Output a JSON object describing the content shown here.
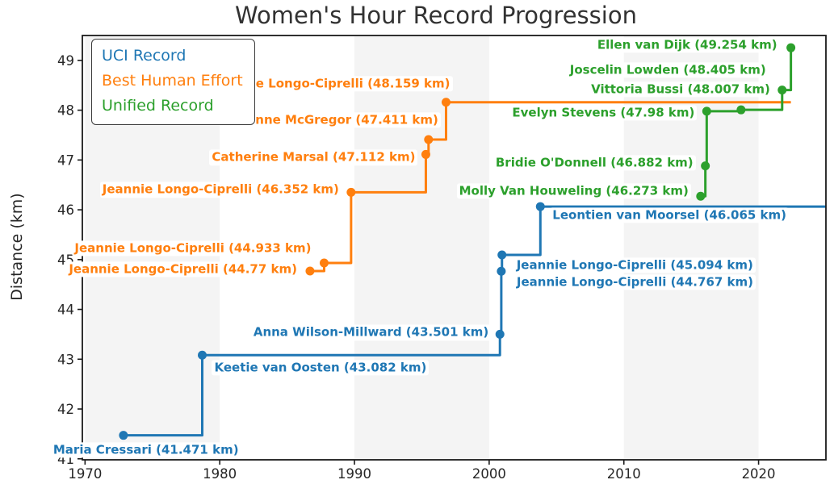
{
  "title": "Women's Hour Record Progression",
  "legend": {
    "items": [
      {
        "label": "UCI Record",
        "color": "#1f77b4"
      },
      {
        "label": "Best Human Effort",
        "color": "#ff7f0e"
      },
      {
        "label": "Unified Record",
        "color": "#2ca02c"
      }
    ]
  },
  "chart_data": {
    "type": "line",
    "subtype": "step-post",
    "title": "Women's Hour Record Progression",
    "xlabel": "",
    "ylabel": "Distance (km)",
    "xlim": [
      1969.8,
      2025.0
    ],
    "ylim": [
      40.98,
      49.5
    ],
    "x_ticks": [
      1970,
      1980,
      1990,
      2000,
      2010,
      2020
    ],
    "y_ticks": [
      41,
      42,
      43,
      44,
      45,
      46,
      47,
      48,
      49
    ],
    "grid": false,
    "legend_position": "upper-left",
    "shaded_decade_bands": [
      [
        1970,
        1980
      ],
      [
        1990,
        2000
      ],
      [
        2010,
        2020
      ]
    ],
    "band_color": "#f4f4f4",
    "spine_color": "#1a1a1a",
    "series": [
      {
        "name": "UCI Record",
        "color": "#1f77b4",
        "extend_to": 2025.0,
        "points": [
          {
            "year": 1972.85,
            "km": 41.471,
            "label": "Maria Cressari (41.471 km)",
            "anchor": "start",
            "dx": -90,
            "dy": 18
          },
          {
            "year": 1978.7,
            "km": 43.082,
            "label": "Keetie van Oosten (43.082 km)",
            "anchor": "start",
            "dx": 12,
            "dy": 16
          },
          {
            "year": 2000.8,
            "km": 43.501,
            "label": "Anna Wilson-Millward (43.501 km)",
            "anchor": "end",
            "dx": -11,
            "dy": -2
          },
          {
            "year": 2000.9,
            "km": 44.767,
            "label": "Jeannie Longo-Ciprelli (44.767 km)",
            "anchor": "start",
            "dx": 16,
            "dy": 14
          },
          {
            "year": 2000.95,
            "km": 45.094,
            "label": "Jeannie Longo-Ciprelli (45.094 km)",
            "anchor": "start",
            "dx": 15,
            "dy": 13
          },
          {
            "year": 2003.8,
            "km": 46.065,
            "label": "Leontien van Moorsel (46.065 km)",
            "anchor": "start",
            "dx": 12,
            "dy": 11
          }
        ]
      },
      {
        "name": "Best Human Effort",
        "color": "#ff7f0e",
        "extend_to": 2022.4,
        "points": [
          {
            "year": 1986.7,
            "km": 44.77,
            "label": "Jeannie Longo-Ciprelli (44.77 km)",
            "anchor": "end",
            "dx": -13,
            "dy": -2
          },
          {
            "year": 1987.75,
            "km": 44.933,
            "label": "Jeannie Longo-Ciprelli (44.933 km)",
            "anchor": "end",
            "dx": -13,
            "dy": -18
          },
          {
            "year": 1989.75,
            "km": 46.352,
            "label": "Jeannie Longo-Ciprelli (46.352 km)",
            "anchor": "end",
            "dx": -12,
            "dy": -3
          },
          {
            "year": 1995.3,
            "km": 47.112,
            "label": "Catherine Marsal (47.112 km)",
            "anchor": "end",
            "dx": -10,
            "dy": 4
          },
          {
            "year": 1995.5,
            "km": 47.411,
            "label": "Yvonne McGregor (47.411 km)",
            "anchor": "end",
            "dx": 15,
            "dy": -24
          },
          {
            "year": 1996.8,
            "km": 48.159,
            "label": "Jeannie Longo-Ciprelli (48.159 km)",
            "anchor": "end",
            "dx": 8,
            "dy": -23
          }
        ]
      },
      {
        "name": "Unified Record",
        "color": "#2ca02c",
        "extend_to": null,
        "points": [
          {
            "year": 2015.7,
            "km": 46.273,
            "label": "Molly Van Houweling (46.273 km)",
            "anchor": "end",
            "dx": -12,
            "dy": -6
          },
          {
            "year": 2016.05,
            "km": 46.882,
            "label": "Bridie O'Donnell (46.882 km)",
            "anchor": "end",
            "dx": -12,
            "dy": -4
          },
          {
            "year": 2016.15,
            "km": 47.98,
            "label": "Evelyn Stevens (47.98 km)",
            "anchor": "end",
            "dx": -12,
            "dy": 2
          },
          {
            "year": 2018.7,
            "km": 48.007,
            "label": "Vittoria Bussi (48.007 km)",
            "anchor": "end",
            "dx": 39,
            "dy": -25
          },
          {
            "year": 2021.75,
            "km": 48.405,
            "label": "Joscelin Lowden (48.405 km)",
            "anchor": "end",
            "dx": -17,
            "dy": -25
          },
          {
            "year": 2022.4,
            "km": 49.254,
            "label": "Ellen van Dijk (49.254 km)",
            "anchor": "end",
            "dx": -14,
            "dy": -3
          }
        ]
      }
    ]
  }
}
